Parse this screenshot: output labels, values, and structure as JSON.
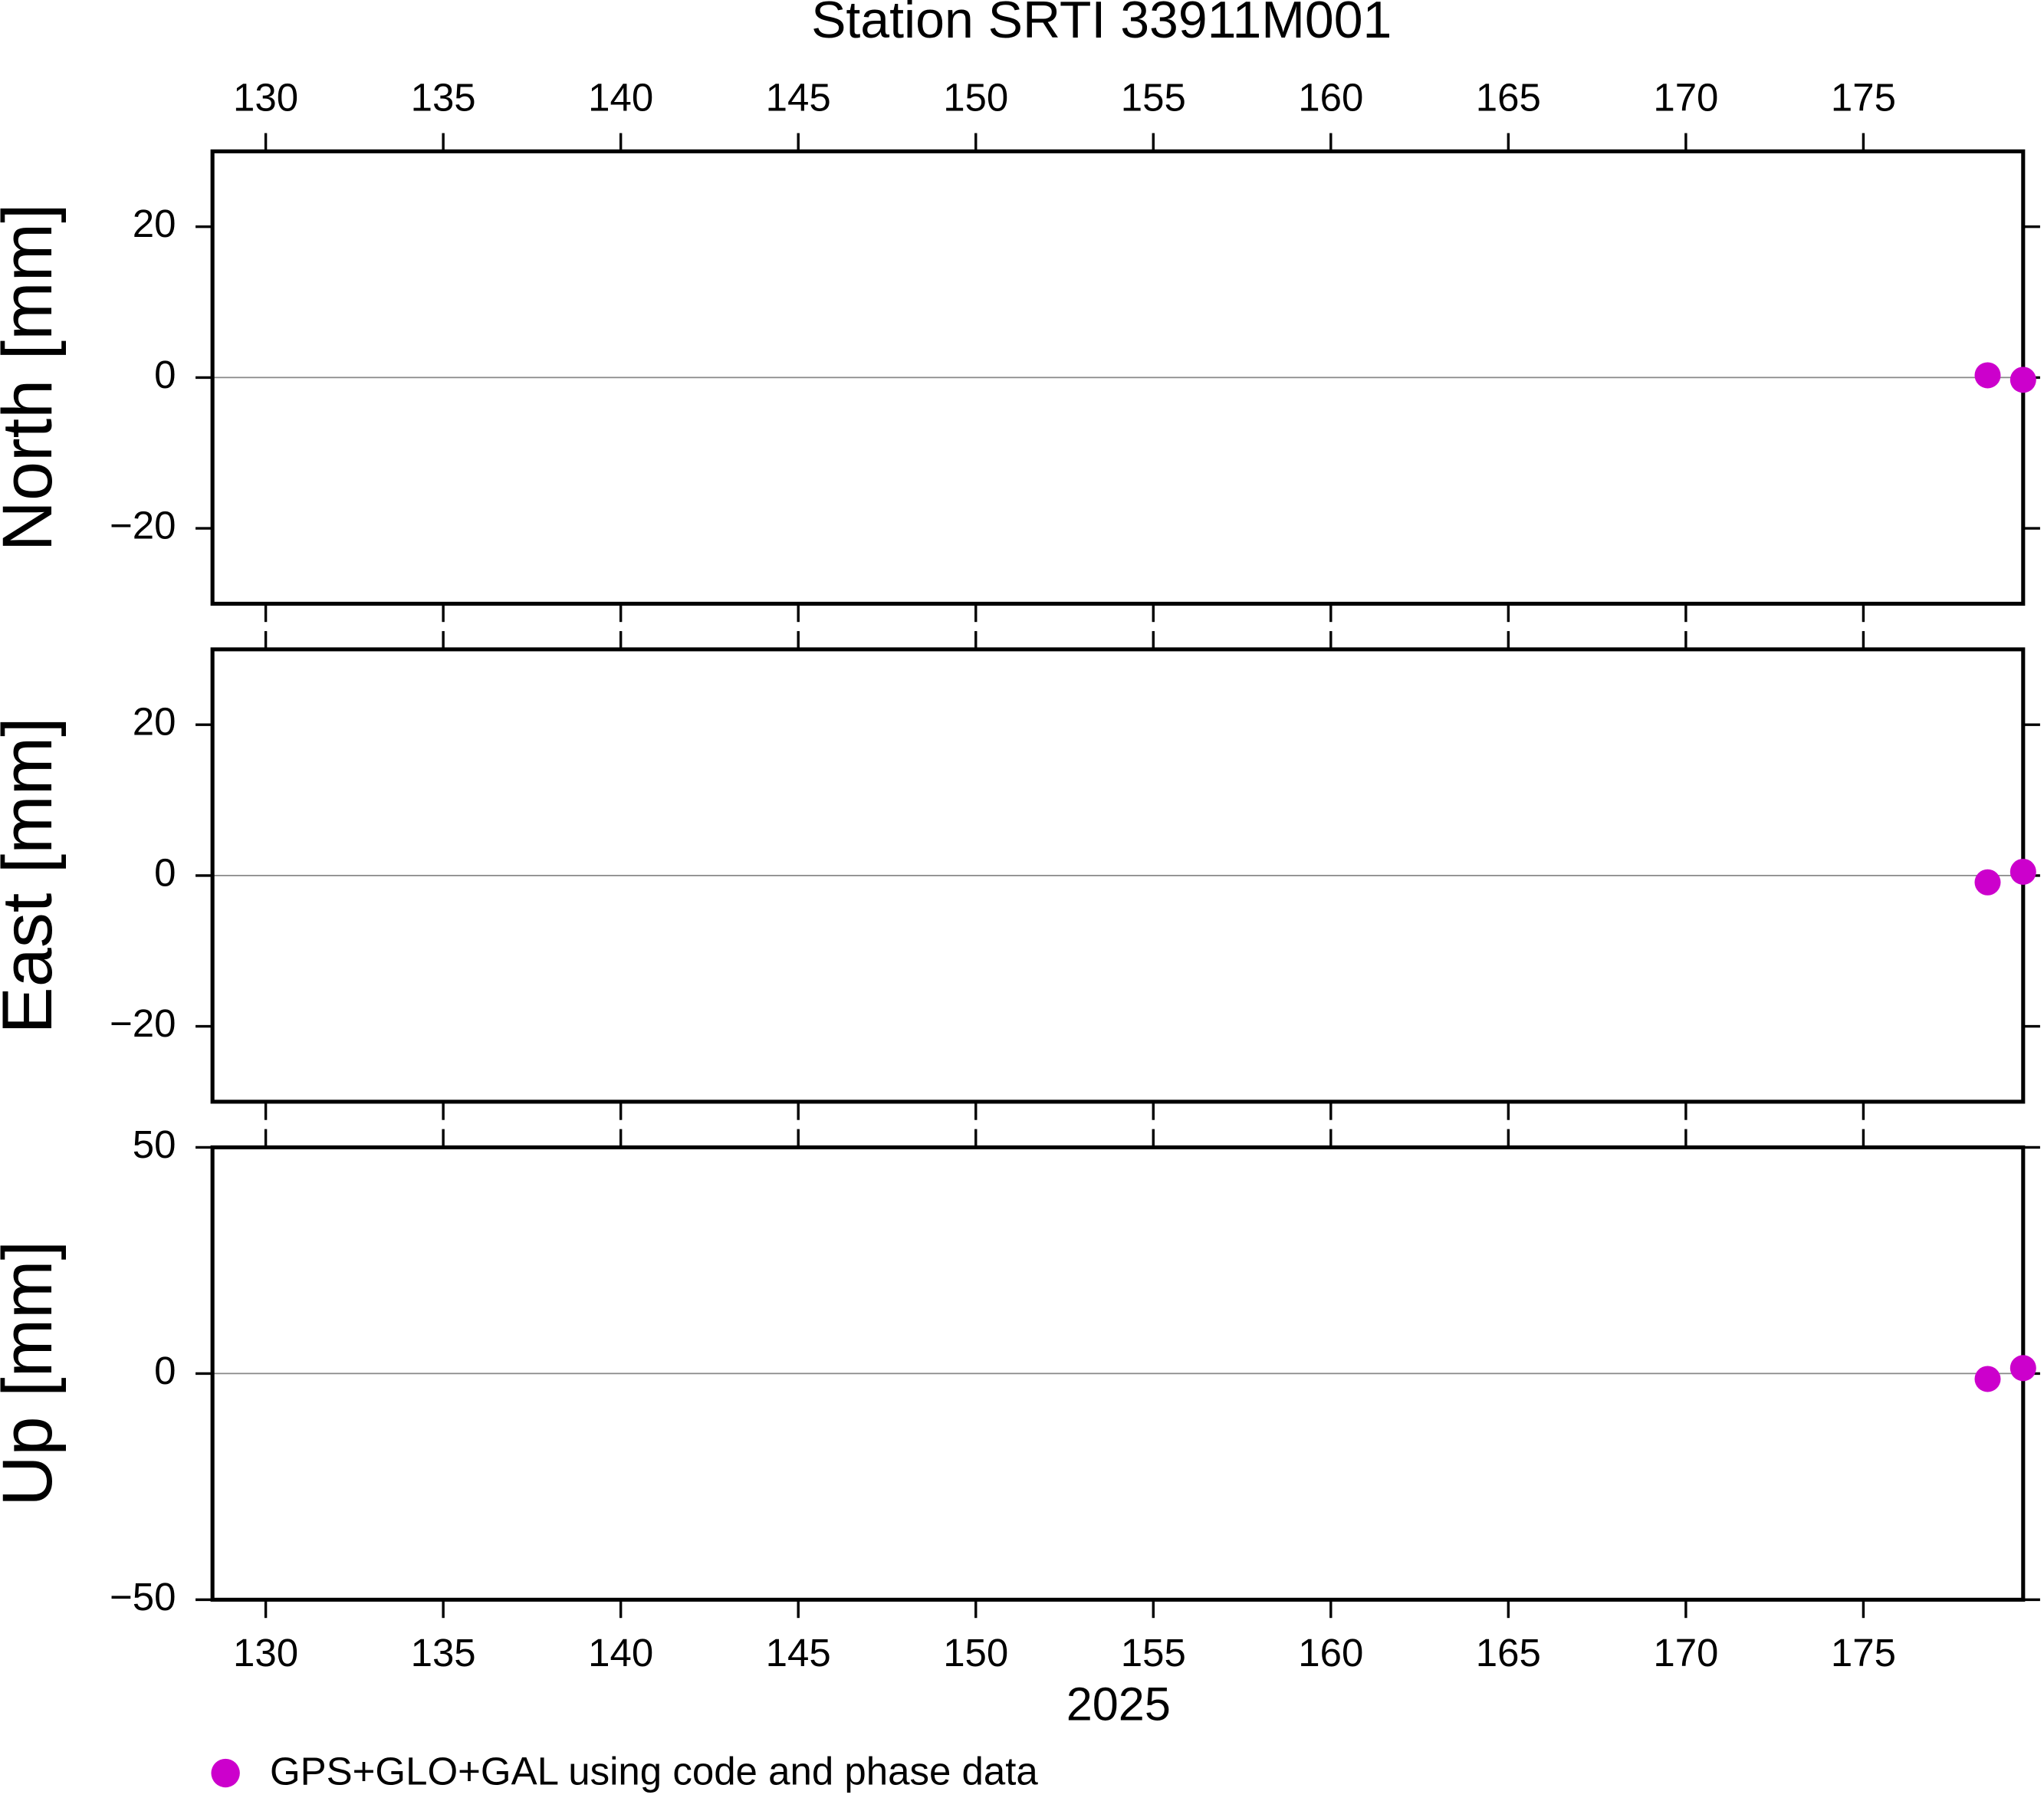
{
  "chart_data": {
    "type": "scatter",
    "title": "Station SRTI 33911M001",
    "xlabel": "2025",
    "xlim": [
      128.5,
      179.5
    ],
    "xticks": [
      130,
      135,
      140,
      145,
      150,
      155,
      160,
      165,
      170,
      175
    ],
    "x": [
      178.5,
      179.5
    ],
    "series": [
      {
        "name": "GPS+GLO+GAL using code and phase data",
        "color": "#cc00cc"
      }
    ],
    "panels": [
      {
        "ylabel": "North [mm]",
        "ylim": [
          -30,
          30
        ],
        "yticks": [
          {
            "value": -20,
            "label": "−20"
          },
          0,
          20
        ],
        "values": [
          0.3,
          -0.3
        ]
      },
      {
        "ylabel": "East [mm]",
        "ylim": [
          -30,
          30
        ],
        "yticks": [
          {
            "value": -20,
            "label": "−20"
          },
          0,
          20
        ],
        "values": [
          -0.9,
          0.5
        ]
      },
      {
        "ylabel": "Up [mm]",
        "ylim": [
          -50,
          50
        ],
        "yticks": [
          {
            "value": -50,
            "label": "−50"
          },
          0,
          50
        ],
        "values": [
          -1.2,
          1.2
        ]
      }
    ]
  }
}
